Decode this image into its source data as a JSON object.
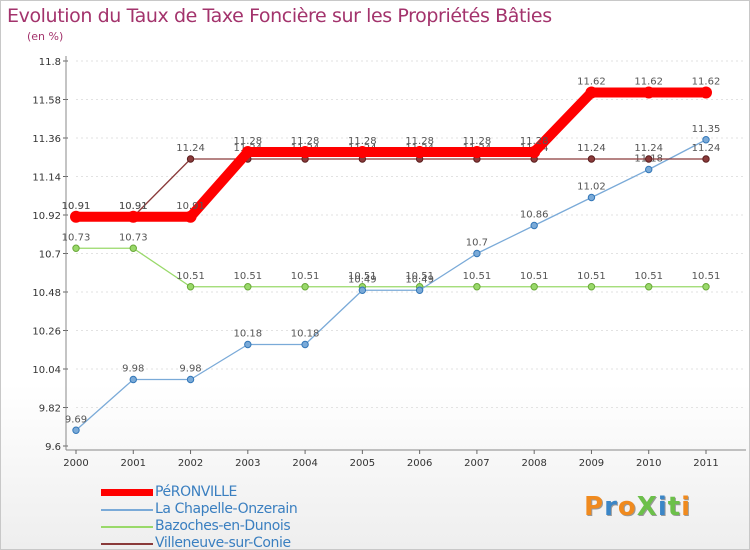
{
  "chart_data": {
    "type": "line",
    "title": "Evolution du Taux de Taxe Foncière sur les Propriétés Bâties",
    "ylabel": "(en %)",
    "x": [
      "2000",
      "2001",
      "2002",
      "2003",
      "2004",
      "2005",
      "2006",
      "2007",
      "2008",
      "2009",
      "2010",
      "2011"
    ],
    "ylim": [
      9.6,
      11.8
    ],
    "yticks": [
      "11.8",
      "11.58",
      "11.36",
      "11.14",
      "10.92",
      "10.7",
      "10.48",
      "10.26",
      "10.04",
      "9.82",
      "9.6"
    ],
    "series": [
      {
        "name": "PéRONVILLE",
        "color": "#ff0000",
        "values": [
          10.91,
          10.91,
          10.91,
          11.28,
          11.28,
          11.28,
          11.28,
          11.28,
          11.28,
          11.62,
          11.62,
          11.62
        ]
      },
      {
        "name": "La Chapelle-Onzerain",
        "color": "#7aaad8",
        "values": [
          9.69,
          9.98,
          9.98,
          10.18,
          10.18,
          10.49,
          10.49,
          10.7,
          10.86,
          11.02,
          11.18,
          11.35
        ]
      },
      {
        "name": "Bazoches-en-Dunois",
        "color": "#99d96a",
        "values": [
          10.73,
          10.73,
          10.51,
          10.51,
          10.51,
          10.51,
          10.51,
          10.51,
          10.51,
          10.51,
          10.51,
          10.51
        ]
      },
      {
        "name": "Villeneuve-sur-Conie",
        "color": "#8a3a3a",
        "values": [
          10.91,
          10.91,
          11.24,
          11.24,
          11.24,
          11.24,
          11.24,
          11.24,
          11.24,
          11.24,
          11.24,
          11.24
        ]
      }
    ]
  },
  "logo": {
    "text": "ProXiti"
  }
}
